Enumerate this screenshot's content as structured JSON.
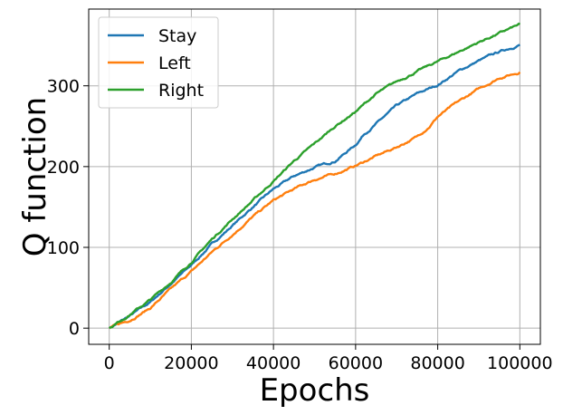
{
  "chart_data": {
    "type": "line",
    "xlabel": "Epochs",
    "ylabel": "Q function",
    "xlim": [
      -5000,
      105000
    ],
    "ylim": [
      -20,
      395
    ],
    "xticks": [
      0,
      20000,
      40000,
      60000,
      80000,
      100000
    ],
    "xtick_labels": [
      "0",
      "20000",
      "40000",
      "60000",
      "80000",
      "100000"
    ],
    "yticks": [
      0,
      100,
      200,
      300
    ],
    "ytick_labels": [
      "0",
      "100",
      "200",
      "300"
    ],
    "grid": true,
    "legend_position": "top-left",
    "series": [
      {
        "name": "Stay",
        "color": "#1f77b4",
        "x": [
          0,
          5000,
          10000,
          15000,
          20000,
          25000,
          30000,
          35000,
          40000,
          45000,
          50000,
          55000,
          60000,
          62000,
          65000,
          70000,
          75000,
          80000,
          85000,
          90000,
          95000,
          100000
        ],
        "y": [
          0,
          15,
          32,
          55,
          78,
          104,
          127,
          150,
          172,
          188,
          199,
          207,
          227,
          240,
          253,
          275,
          290,
          301,
          318,
          331,
          342,
          351
        ]
      },
      {
        "name": "Left",
        "color": "#ff7f0e",
        "x": [
          0,
          5000,
          10000,
          15000,
          20000,
          25000,
          30000,
          35000,
          40000,
          45000,
          50000,
          55000,
          60000,
          65000,
          70000,
          75000,
          78000,
          80000,
          85000,
          90000,
          95000,
          100000
        ],
        "y": [
          0,
          10,
          25,
          48,
          70,
          94,
          116,
          138,
          158,
          172,
          184,
          191,
          201,
          213,
          224,
          237,
          250,
          262,
          280,
          296,
          310,
          317
        ]
      },
      {
        "name": "Right",
        "color": "#2ca02c",
        "x": [
          0,
          5000,
          10000,
          15000,
          20000,
          25000,
          30000,
          35000,
          40000,
          45000,
          50000,
          55000,
          60000,
          65000,
          70000,
          75000,
          80000,
          85000,
          90000,
          95000,
          100000
        ],
        "y": [
          0,
          17,
          35,
          57,
          82,
          110,
          135,
          158,
          182,
          207,
          228,
          250,
          268,
          290,
          305,
          318,
          330,
          342,
          354,
          365,
          376
        ]
      }
    ]
  }
}
